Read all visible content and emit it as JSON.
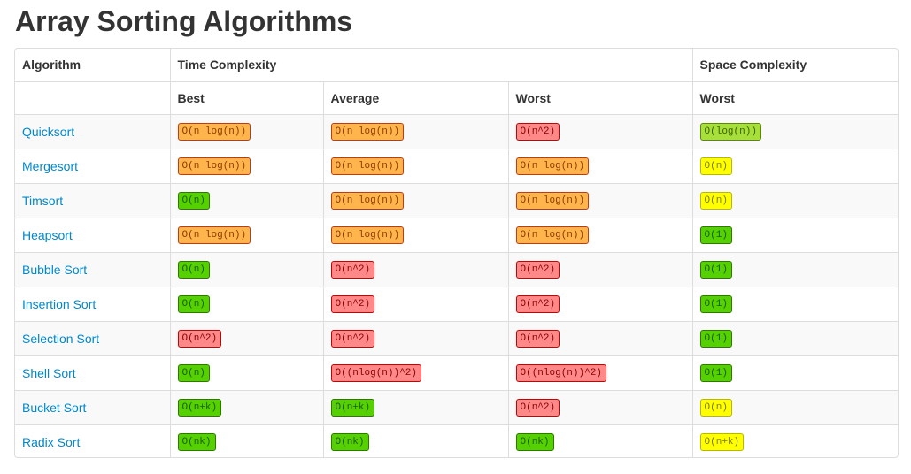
{
  "title": "Array Sorting Algorithms",
  "headers": {
    "algorithm": "Algorithm",
    "time_complexity": "Time Complexity",
    "space_complexity": "Space Complexity",
    "best": "Best",
    "average": "Average",
    "worst": "Worst",
    "space_worst": "Worst"
  },
  "colors": {
    "orange": "#ffb44c",
    "red": "#ff8888",
    "lime": "#a8e03b",
    "green": "#55d000",
    "yellow": "#ffff00",
    "link": "#0088cc"
  },
  "rows": [
    {
      "name": "Quicksort",
      "best": {
        "text": "O(n log(n))",
        "color": "orange"
      },
      "average": {
        "text": "O(n log(n))",
        "color": "orange"
      },
      "worst": {
        "text": "O(n^2)",
        "color": "red"
      },
      "space": {
        "text": "O(log(n))",
        "color": "lime"
      }
    },
    {
      "name": "Mergesort",
      "best": {
        "text": "O(n log(n))",
        "color": "orange"
      },
      "average": {
        "text": "O(n log(n))",
        "color": "orange"
      },
      "worst": {
        "text": "O(n log(n))",
        "color": "orange"
      },
      "space": {
        "text": "O(n)",
        "color": "yellow"
      }
    },
    {
      "name": "Timsort",
      "best": {
        "text": "O(n)",
        "color": "green"
      },
      "average": {
        "text": "O(n log(n))",
        "color": "orange"
      },
      "worst": {
        "text": "O(n log(n))",
        "color": "orange"
      },
      "space": {
        "text": "O(n)",
        "color": "yellow"
      }
    },
    {
      "name": "Heapsort",
      "best": {
        "text": "O(n log(n))",
        "color": "orange"
      },
      "average": {
        "text": "O(n log(n))",
        "color": "orange"
      },
      "worst": {
        "text": "O(n log(n))",
        "color": "orange"
      },
      "space": {
        "text": "O(1)",
        "color": "green"
      }
    },
    {
      "name": "Bubble Sort",
      "best": {
        "text": "O(n)",
        "color": "green"
      },
      "average": {
        "text": "O(n^2)",
        "color": "red"
      },
      "worst": {
        "text": "O(n^2)",
        "color": "red"
      },
      "space": {
        "text": "O(1)",
        "color": "green"
      }
    },
    {
      "name": "Insertion Sort",
      "best": {
        "text": "O(n)",
        "color": "green"
      },
      "average": {
        "text": "O(n^2)",
        "color": "red"
      },
      "worst": {
        "text": "O(n^2)",
        "color": "red"
      },
      "space": {
        "text": "O(1)",
        "color": "green"
      }
    },
    {
      "name": "Selection Sort",
      "best": {
        "text": "O(n^2)",
        "color": "red"
      },
      "average": {
        "text": "O(n^2)",
        "color": "red"
      },
      "worst": {
        "text": "O(n^2)",
        "color": "red"
      },
      "space": {
        "text": "O(1)",
        "color": "green"
      }
    },
    {
      "name": "Shell Sort",
      "best": {
        "text": "O(n)",
        "color": "green"
      },
      "average": {
        "text": "O((nlog(n))^2)",
        "color": "red"
      },
      "worst": {
        "text": "O((nlog(n))^2)",
        "color": "red"
      },
      "space": {
        "text": "O(1)",
        "color": "green"
      }
    },
    {
      "name": "Bucket Sort",
      "best": {
        "text": "O(n+k)",
        "color": "green"
      },
      "average": {
        "text": "O(n+k)",
        "color": "green"
      },
      "worst": {
        "text": "O(n^2)",
        "color": "red"
      },
      "space": {
        "text": "O(n)",
        "color": "yellow"
      }
    },
    {
      "name": "Radix Sort",
      "best": {
        "text": "O(nk)",
        "color": "green"
      },
      "average": {
        "text": "O(nk)",
        "color": "green"
      },
      "worst": {
        "text": "O(nk)",
        "color": "green"
      },
      "space": {
        "text": "O(n+k)",
        "color": "yellow"
      }
    }
  ]
}
